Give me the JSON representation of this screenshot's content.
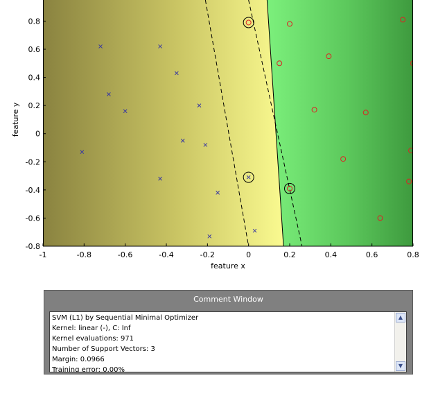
{
  "chart_data": {
    "type": "scatter",
    "xlabel": "feature x",
    "ylabel": "feature y",
    "xlim": [
      -1,
      0.8
    ],
    "ylim": [
      -0.8,
      0.95
    ],
    "xticks": [
      "-1",
      "-0.8",
      "-0.6",
      "-0.4",
      "-0.2",
      "0",
      "0.2",
      "0.4",
      "0.6",
      "0.8"
    ],
    "xtick_values": [
      -1,
      -0.8,
      -0.6,
      -0.4,
      -0.2,
      0,
      0.2,
      0.4,
      0.6,
      0.8
    ],
    "yticks": [
      "-0.8",
      "-0.6",
      "-0.4",
      "-0.2",
      "0",
      "0.2",
      "0.4",
      "0.6",
      "0.8"
    ],
    "ytick_values": [
      -0.8,
      -0.6,
      -0.4,
      -0.2,
      0,
      0.2,
      0.4,
      0.6,
      0.8
    ],
    "class_neg": {
      "marker": "x",
      "color": "#3a3aa0",
      "points": [
        [
          -0.72,
          0.62
        ],
        [
          -0.43,
          0.62
        ],
        [
          -0.35,
          0.43
        ],
        [
          -0.68,
          0.28
        ],
        [
          -0.6,
          0.16
        ],
        [
          -0.24,
          0.2
        ],
        [
          -0.32,
          -0.05
        ],
        [
          -0.21,
          -0.08
        ],
        [
          -0.81,
          -0.13
        ],
        [
          -0.43,
          -0.32
        ],
        [
          -0.15,
          -0.42
        ],
        [
          -0.19,
          -0.73
        ],
        [
          0.03,
          -0.69
        ],
        [
          0.0,
          -0.31
        ]
      ]
    },
    "class_pos": {
      "marker": "o",
      "color": "#dd2222",
      "points": [
        [
          0.0,
          0.79
        ],
        [
          0.2,
          0.78
        ],
        [
          0.75,
          0.81
        ],
        [
          0.39,
          0.55
        ],
        [
          0.15,
          0.5
        ],
        [
          0.8,
          0.5
        ],
        [
          0.32,
          0.17
        ],
        [
          0.57,
          0.15
        ],
        [
          0.79,
          -0.12
        ],
        [
          0.46,
          -0.18
        ],
        [
          0.78,
          -0.34
        ],
        [
          0.2,
          -0.39
        ],
        [
          0.64,
          -0.6
        ]
      ]
    },
    "support_vectors": [
      [
        0.0,
        0.79
      ],
      [
        0.2,
        -0.39
      ],
      [
        0.0,
        -0.31
      ]
    ],
    "decision_boundary": {
      "x_at_top": 0.09,
      "x_at_bottom": 0.17
    },
    "margin_neg": {
      "x_at_top": -0.21,
      "x_at_bottom": 0.0
    },
    "margin_pos": {
      "x_at_top": 0.0,
      "x_at_bottom": 0.26
    },
    "colors": {
      "neg_far": "#8a8340",
      "neg_mid": "#c9c463",
      "neg_near": "#fafa90",
      "pos_near": "#7cf07c",
      "pos_mid": "#5cc85c",
      "pos_far": "#3e9a3e"
    }
  },
  "comment_window": {
    "title": "Comment Window",
    "lines": [
      "SVM (L1) by Sequential Minimal Optimizer",
      "Kernel: linear (-), C: Inf",
      "Kernel evaluations: 971",
      "Number of Support Vectors: 3",
      "Margin: 0.0966",
      "Training error: 0.00%"
    ],
    "scroll_up_icon": "▲",
    "scroll_down_icon": "▼"
  }
}
